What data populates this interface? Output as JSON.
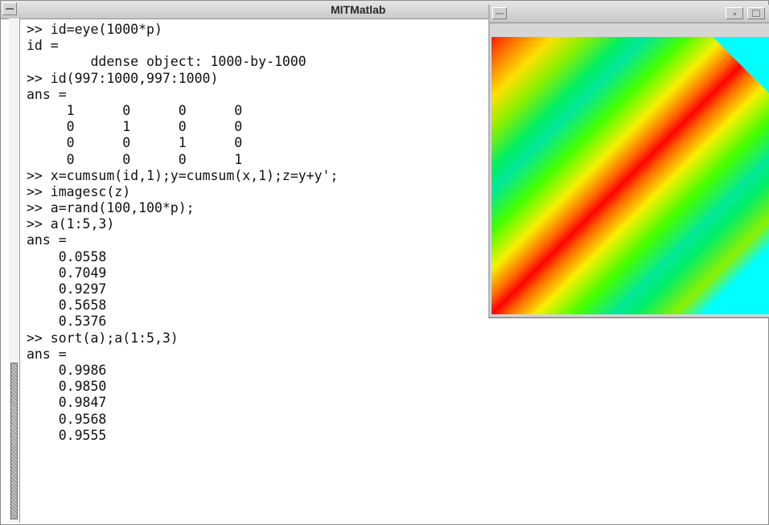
{
  "window": {
    "title": "MITMatlab"
  },
  "terminal": {
    "lines": [
      ">> id=eye(1000*p)",
      "id =",
      "        ddense object: 1000-by-1000",
      ">> id(997:1000,997:1000)",
      "ans =",
      "     1      0      0      0",
      "     0      1      0      0",
      "     0      0      1      0",
      "     0      0      0      1",
      ">> x=cumsum(id,1);y=cumsum(x,1);z=y+y';",
      ">> imagesc(z)",
      ">> a=rand(100,100*p);",
      ">> a(1:5,3)",
      "ans =",
      "    0.0558",
      "    0.7049",
      "    0.9297",
      "    0.5658",
      "    0.5376",
      ">> sort(a);a(1:5,3)",
      "ans =",
      "    0.9986",
      "    0.9850",
      "    0.9847",
      "    0.9568",
      "    0.9555"
    ]
  },
  "figure": {
    "image": "imagesc-z-colormap",
    "colors": {
      "diagonal": "#ff0000",
      "corner": "#00ffff"
    }
  },
  "icons": {
    "window_menu": "window-menu-icon",
    "minimize": "minimize-icon",
    "maximize": "maximize-icon"
  }
}
